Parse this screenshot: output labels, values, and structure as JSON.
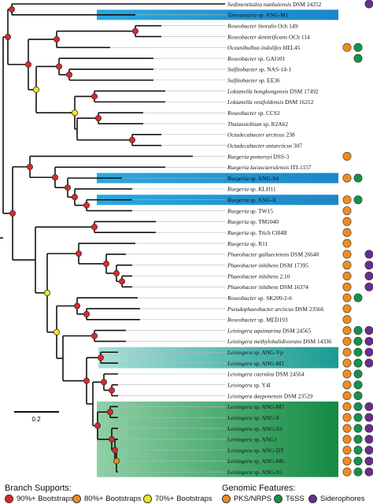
{
  "taxa": [
    {
      "label": "Sedimentitalea nanhaiensis DSM 24252",
      "italic_part": "Sedimentitalea nanhaiensis",
      "rest": " DSM 24252",
      "x": 286,
      "features": [
        "siderophores"
      ]
    },
    {
      "label": "Tateyamaria sp. ANG-M1",
      "italic_part": "Tateyamaria",
      "rest": " sp. ANG-M1",
      "x": 172,
      "highlight": "blue",
      "features": []
    },
    {
      "label": "Roseobacter litoralis Och 149",
      "italic_part": "Roseobacter litoralis",
      "rest": " Och 149",
      "x": 205,
      "features": []
    },
    {
      "label": "Roseobacter denitrificans OCh 114",
      "italic_part": "Roseobacter denitrificans",
      "rest": " OCh 114",
      "x": 205,
      "features": []
    },
    {
      "label": "Oceanibulbus indolifex HEL45",
      "italic_part": "Oceanibulbus indolifex",
      "rest": " HEL45",
      "x": 140,
      "features": [
        "pks",
        "t6ss"
      ]
    },
    {
      "label": "Roseobacter sp. GAI101",
      "italic_part": "Roseobacter",
      "rest": " sp. GAI101",
      "x": 195,
      "features": [
        "t6ss"
      ]
    },
    {
      "label": "Sulfitobacter sp. NAS-14-1",
      "italic_part": "Sulfitobacter",
      "rest": " sp. NAS-14-1",
      "x": 195,
      "features": []
    },
    {
      "label": "Sulfitobacter sp. EE36",
      "italic_part": "Sulfitobacter",
      "rest": " sp. EE36",
      "x": 195,
      "features": []
    },
    {
      "label": "Loktanella hongkongensis DSM 17492",
      "italic_part": "Loktanella hongkongensis",
      "rest": " DSM 17492",
      "x": 210,
      "features": []
    },
    {
      "label": "Loktanella vestfoldensis DSM 16212",
      "italic_part": "Loktanella vestfoldensis",
      "rest": " DSM 16212",
      "x": 210,
      "features": []
    },
    {
      "label": "Roseobacter sp. CCS2",
      "italic_part": "Roseobacter",
      "rest": " sp. CCS2",
      "x": 182,
      "features": []
    },
    {
      "label": "Thalassiobium sp. R2A62",
      "italic_part": "Thalassiobium",
      "rest": " sp. R2A62",
      "x": 182,
      "features": []
    },
    {
      "label": "Octadecabacter arcticus 238",
      "italic_part": "Octadecabacter arcticus",
      "rest": " 238",
      "x": 205,
      "features": []
    },
    {
      "label": "Octadecabacter antarcticus 307",
      "italic_part": "Octadecabacter antarcticus",
      "rest": " 307",
      "x": 205,
      "features": []
    },
    {
      "label": "Ruegeria pomeroyi DSS-3",
      "italic_part": "Ruegeria pomeroyi",
      "rest": " DSS-3",
      "x": 245,
      "features": [
        "pks"
      ]
    },
    {
      "label": "Ruegeria lacuscaerulensis ITI-1157",
      "italic_part": "Ruegeria lacuscaerulensis",
      "rest": " ITI-1157",
      "x": 210,
      "features": []
    },
    {
      "label": "Ruegeria sp. ANG-S4",
      "italic_part": "Ruegeria",
      "rest": " sp. ANG-S4",
      "x": 155,
      "highlight": "blue",
      "features": [
        "pks",
        "t6ss"
      ]
    },
    {
      "label": "Ruegeria sp. KLH11",
      "italic_part": "Ruegeria",
      "rest": " sp. KLH11",
      "x": 168,
      "features": []
    },
    {
      "label": "Ruegeria sp. ANG-R",
      "italic_part": "Ruegeria",
      "rest": " sp. ANG-R",
      "x": 168,
      "highlight": "blue",
      "features": [
        "pks",
        "t6ss"
      ]
    },
    {
      "label": "Ruegeria sp. TW15",
      "italic_part": "Ruegeria",
      "rest": " sp. TW15",
      "x": 168,
      "features": [
        "pks"
      ]
    },
    {
      "label": "Ruegeria sp. TM1040",
      "italic_part": "Ruegeria",
      "rest": " sp. TM1040",
      "x": 198,
      "features": [
        "pks"
      ]
    },
    {
      "label": "Ruegeria sp. Trich CH4B",
      "italic_part": "Ruegeria",
      "rest": " sp. Trich CH4B",
      "x": 198,
      "features": [
        "pks"
      ]
    },
    {
      "label": "Ruegeria sp. R11",
      "italic_part": "Ruegeria",
      "rest": " sp. R11",
      "x": 172,
      "features": [
        "pks"
      ]
    },
    {
      "label": "Phaeobacter gallaeciensis DSM 26640",
      "italic_part": "Phaeobacter gallaeciensis",
      "rest": " DSM 26640",
      "x": 160,
      "features": [
        "pks",
        "siderophores"
      ]
    },
    {
      "label": "Phaeobacter inhibens DSM 17395",
      "italic_part": "Phaeobacter inhibens",
      "rest": " DSM 17395",
      "x": 168,
      "features": [
        "pks",
        "siderophores"
      ]
    },
    {
      "label": "Phaeobacter inhibens 2.10",
      "italic_part": "Phaeobacter inhibens",
      "rest": " 2.10",
      "x": 168,
      "features": [
        "pks",
        "siderophores"
      ]
    },
    {
      "label": "Phaeobacter inhibens DSM 16374",
      "italic_part": "Phaeobacter inhibens",
      "rest": " DSM 16374",
      "x": 168,
      "features": [
        "pks",
        "siderophores"
      ]
    },
    {
      "label": "Roseobacter sp. SK209-2-6",
      "italic_part": "Roseobacter",
      "rest": " sp. SK209-2-6",
      "x": 175,
      "features": [
        "pks",
        "t6ss"
      ]
    },
    {
      "label": "Pseudophaeobacter arcticus DSM 23566",
      "italic_part": "Pseudophaeobacter arcticus",
      "rest": " DSM 23566",
      "x": 178,
      "features": [
        "pks"
      ]
    },
    {
      "label": "Roseobacter sp. MED193",
      "italic_part": "Roseobacter",
      "rest": " sp. MED193",
      "x": 178,
      "features": [
        "pks"
      ]
    },
    {
      "label": "Leisingera aquimarina DSM 24565",
      "italic_part": "Leisingera aquimarina",
      "rest": " DSM 24565",
      "x": 160,
      "features": [
        "pks",
        "t6ss",
        "siderophores"
      ]
    },
    {
      "label": "Leisingera methylohalidivorans DSM 14336",
      "italic_part": "Leisingera methylohalidivorans",
      "rest": " DSM 14336",
      "x": 160,
      "features": [
        "pks",
        "t6ss",
        "siderophores"
      ]
    },
    {
      "label": "Leisingera sp. ANG-Vp",
      "italic_part": "Leisingera",
      "rest": " sp. ANG-Vp",
      "x": 150,
      "highlight": "teal",
      "features": [
        "pks",
        "t6ss",
        "siderophores"
      ]
    },
    {
      "label": "Leisingera sp. ANG-M1",
      "italic_part": "Leisingera",
      "rest": " sp. ANG-M1",
      "x": 150,
      "highlight": "teal",
      "features": [
        "pks",
        "t6ss",
        "siderophores"
      ]
    },
    {
      "label": "Leisingera caerulea DSM 24564",
      "italic_part": "Leisingera caerulea",
      "rest": " DSM 24564",
      "x": 150,
      "features": [
        "pks",
        "t6ss"
      ]
    },
    {
      "label": "Leisingera sp. Y4I",
      "italic_part": "Leisingera",
      "rest": " sp. Y4I",
      "x": 150,
      "features": [
        "pks",
        "t6ss"
      ]
    },
    {
      "label": "Leisingera daeponensis DSM 23529",
      "italic_part": "Leisingera daeponensis",
      "rest": " DSM 23529",
      "x": 150,
      "features": [
        "pks",
        "t6ss"
      ]
    },
    {
      "label": "Leisingera sp. ANG-M7",
      "italic_part": "Leisingera",
      "rest": " sp. ANG-M7",
      "x": 150,
      "highlight": "green",
      "features": [
        "pks",
        "t6ss",
        "siderophores"
      ]
    },
    {
      "label": "Leisingera sp. ANG-S",
      "italic_part": "Leisingera",
      "rest": " sp. ANG-S",
      "x": 150,
      "highlight": "green",
      "features": [
        "pks",
        "t6ss",
        "siderophores"
      ]
    },
    {
      "label": "Leisingera sp. ANG-S3",
      "italic_part": "Leisingera",
      "rest": " sp. ANG-S3",
      "x": 150,
      "highlight": "green",
      "features": [
        "pks",
        "t6ss",
        "siderophores"
      ]
    },
    {
      "label": "Leisingera sp. ANG1",
      "italic_part": "Leisingera",
      "rest": " sp. ANG1",
      "x": 150,
      "highlight": "green",
      "features": [
        "pks",
        "t6ss",
        "siderophores"
      ]
    },
    {
      "label": "Leisingera sp. ANG-DT",
      "italic_part": "Leisingera",
      "rest": " sp. ANG-DT",
      "x": 150,
      "highlight": "green",
      "features": [
        "pks",
        "t6ss",
        "siderophores"
      ]
    },
    {
      "label": "Leisingera sp. ANG-M6",
      "italic_part": "Leisingera",
      "rest": " sp. ANG-M6",
      "x": 150,
      "highlight": "green",
      "features": [
        "pks",
        "t6ss",
        "siderophores"
      ]
    },
    {
      "label": "Leisingera sp. ANG-S5",
      "italic_part": "Leisingera",
      "rest": " sp. ANG-S5",
      "x": 150,
      "highlight": "green",
      "features": [
        "pks",
        "t6ss",
        "siderophores"
      ]
    }
  ],
  "scale_bar": {
    "label": "0.2"
  },
  "legend": {
    "branch_title": "Branch Supports:",
    "branch_items": [
      {
        "key": "b90",
        "label": "90%+ Bootstraps",
        "color": "#e0262b"
      },
      {
        "key": "b80",
        "label": "80%+ Bootstraps",
        "color": "#f08c1e"
      },
      {
        "key": "b70",
        "label": "70%+ Bootstraps",
        "color": "#f5e81c"
      }
    ],
    "feature_title": "Genomic Features:",
    "feature_items": [
      {
        "key": "pks",
        "label": "PKS/NRPS",
        "color": "#f08c1e"
      },
      {
        "key": "t6ss",
        "label": "T6SS",
        "color": "#13934a"
      },
      {
        "key": "siderophores",
        "label": "Siderophores",
        "color": "#6a2c8f"
      }
    ]
  },
  "colors": {
    "blue_start": "#2aa9de",
    "blue_end": "#1c86c8",
    "teal_start": "#8fd4cc",
    "teal_end": "#1a9c92",
    "green_start": "#7fc79a",
    "green_end": "#138a43",
    "branch": "#111111"
  }
}
